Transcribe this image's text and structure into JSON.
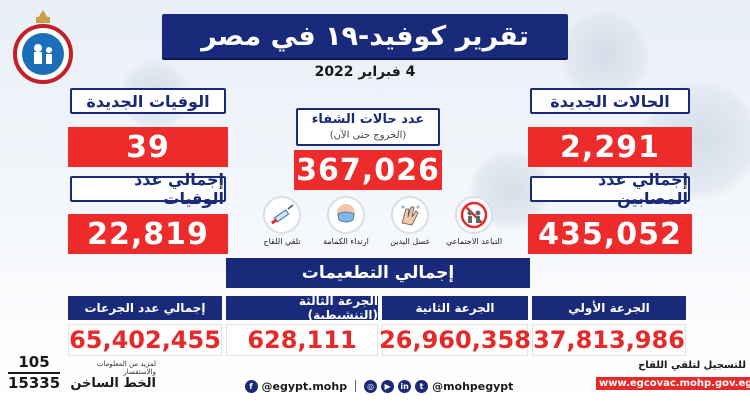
{
  "header": {
    "title": "تقرير كوفيد-١٩ في مصر",
    "date": "4 فبراير 2022"
  },
  "stats": {
    "new_cases": {
      "label": "الحالات الجديدة",
      "value": "2,291"
    },
    "total_cases": {
      "label": "إجمالي عدد المصابين",
      "value": "435,052"
    },
    "new_deaths": {
      "label": "الوفيات الجديدة",
      "value": "39"
    },
    "total_deaths": {
      "label": "إجمالي عدد الوفيات",
      "value": "22,819"
    },
    "recovered": {
      "label": "عدد حالات الشفاء",
      "sublabel": "(الخروج حتى الآن)",
      "value": "367,026"
    }
  },
  "tips": [
    {
      "icon": "social-distancing-icon",
      "label": "التباعد الاجتماعي"
    },
    {
      "icon": "hand-washing-icon",
      "label": "غسل اليدين"
    },
    {
      "icon": "face-mask-icon",
      "label": "ارتداء الكمامة"
    },
    {
      "icon": "vaccine-syringe-icon",
      "label": "تلقي اللقاح"
    }
  ],
  "vaccinations": {
    "title": "إجمالي التطعيمات",
    "first_dose": {
      "label": "الجرعة الأولي",
      "value": "37,813,986"
    },
    "second_dose": {
      "label": "الجرعة الثانية",
      "value": "26,960,358"
    },
    "third_dose": {
      "label": "الجرعة الثالثة (التنشيطية)",
      "value": "628,111"
    },
    "total_doses": {
      "label": "إجمالي عدد الجرعات",
      "value": "65,402,455"
    }
  },
  "footer": {
    "facebook": "@egypt.mohp",
    "handle": "@mohpegypt",
    "hotline_1": "105",
    "hotline_2": "15335",
    "hotline_small": "لمزيد من المعلومات والاستفسار",
    "hotline_label": "الخط الساخن",
    "register_text": "للتسجيل لتلقي اللقاح",
    "register_url": "www.egcovac.mohp.gov.eg"
  },
  "colors": {
    "navy": "#1a2a7a",
    "red": "#ee2b2b"
  }
}
